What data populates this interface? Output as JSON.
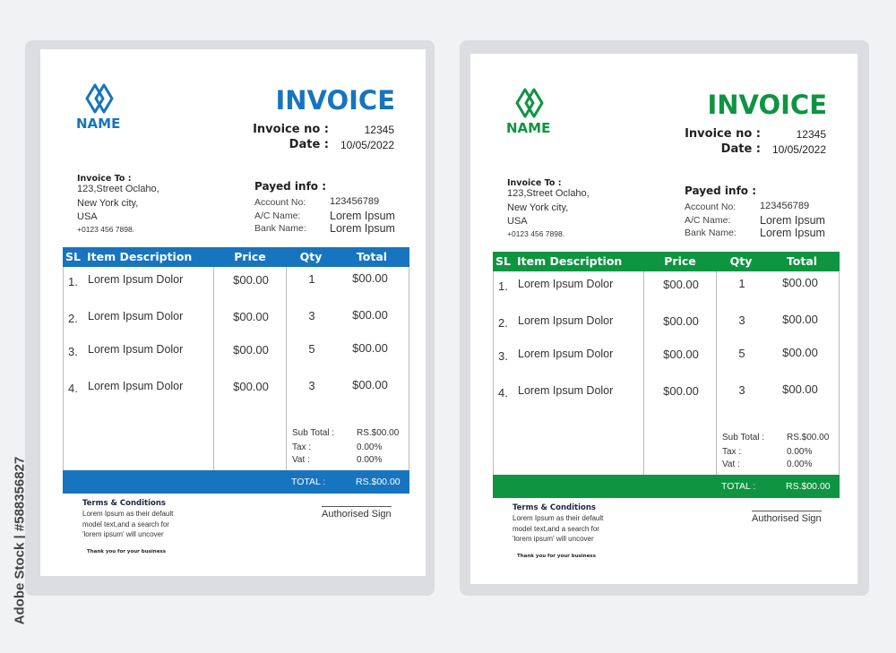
{
  "watermark": "Adobe Stock | #588356827",
  "invoices": [
    {
      "accent": "#1774bf",
      "brand": "NAME",
      "title": "INVOICE",
      "invoice_no_label": "Invoice no :",
      "invoice_no": "12345",
      "date_label": "Date :",
      "date": "10/05/2022",
      "invoice_to_label": "Invoice To :",
      "address": [
        "123,Street  Oclaho,",
        "New  York  city,",
        "USA"
      ],
      "phone": "+0123  456  7898.",
      "payed_label": "Payed info :",
      "account_label": "Account  No:",
      "account": "123456789",
      "ac_name_label": "A/C  Name:",
      "ac_name": "Lorem  Ipsum",
      "bank_label": "Bank  Name:",
      "bank": "Lorem  Ipsum",
      "headers": [
        "SL",
        "Item Description",
        "Price",
        "Qty",
        "Total"
      ],
      "rows": [
        {
          "sl": "1.",
          "desc": "Lorem  Ipsum  Dolor",
          "price": "$00.00",
          "qty": "1",
          "total": "$00.00"
        },
        {
          "sl": "2.",
          "desc": "Lorem  Ipsum  Dolor",
          "price": "$00.00",
          "qty": "3",
          "total": "$00.00"
        },
        {
          "sl": "3.",
          "desc": "Lorem  Ipsum  Dolor",
          "price": "$00.00",
          "qty": "5",
          "total": "$00.00"
        },
        {
          "sl": "4.",
          "desc": "Lorem  Ipsum  Dolor",
          "price": "$00.00",
          "qty": "3",
          "total": "$00.00"
        }
      ],
      "subtotal_label": "Sub  Total  :",
      "subtotal": "RS.$00.00",
      "tax_label": "Tax  :",
      "tax": "0.00%",
      "vat_label": "Vat  :",
      "vat": "0.00%",
      "total_label": "TOTAL  :",
      "total": "RS.$00.00",
      "terms_title": "Terms & Conditions",
      "terms": [
        "Lorem  Ipsum  as  their  default",
        "model  text,and  a  search  for",
        "'lorem  ipsum'  will  uncover"
      ],
      "thanks": "Thank you for your business",
      "sign": "Authorised  Sign"
    },
    {
      "accent": "#0f9441",
      "brand": "NAME",
      "title": "INVOICE",
      "invoice_no_label": "Invoice no :",
      "invoice_no": "12345",
      "date_label": "Date :",
      "date": "10/05/2022",
      "invoice_to_label": "Invoice To :",
      "address": [
        "123,Street  Oclaho,",
        "New  York  city,",
        "USA"
      ],
      "phone": "+0123  456  7898.",
      "payed_label": "Payed info :",
      "account_label": "Account  No:",
      "account": "123456789",
      "ac_name_label": "A/C  Name:",
      "ac_name": "Lorem  Ipsum",
      "bank_label": "Bank  Name:",
      "bank": "Lorem  Ipsum",
      "headers": [
        "SL",
        "Item Description",
        "Price",
        "Qty",
        "Total"
      ],
      "rows": [
        {
          "sl": "1.",
          "desc": "Lorem  Ipsum  Dolor",
          "price": "$00.00",
          "qty": "1",
          "total": "$00.00"
        },
        {
          "sl": "2.",
          "desc": "Lorem  Ipsum  Dolor",
          "price": "$00.00",
          "qty": "3",
          "total": "$00.00"
        },
        {
          "sl": "3.",
          "desc": "Lorem  Ipsum  Dolor",
          "price": "$00.00",
          "qty": "5",
          "total": "$00.00"
        },
        {
          "sl": "4.",
          "desc": "Lorem  Ipsum  Dolor",
          "price": "$00.00",
          "qty": "3",
          "total": "$00.00"
        }
      ],
      "subtotal_label": "Sub  Total  :",
      "subtotal": "RS.$00.00",
      "tax_label": "Tax  :",
      "tax": "0.00%",
      "vat_label": "Vat  :",
      "vat": "0.00%",
      "total_label": "TOTAL  :",
      "total": "RS.$00.00",
      "terms_title": "Terms & Conditions",
      "terms": [
        "Lorem  Ipsum  as  their  default",
        "model  text,and  a  search  for",
        "'lorem  ipsum'  will  uncover"
      ],
      "thanks": "Thank you for your business",
      "sign": "Authorised  Sign"
    }
  ]
}
